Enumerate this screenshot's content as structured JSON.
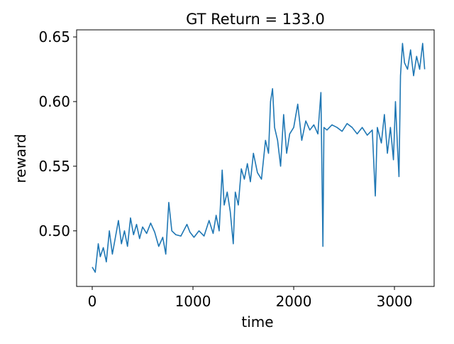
{
  "chart_data": {
    "type": "line",
    "title": "GT Return = 133.0",
    "x_label": "time",
    "y_label": "reward",
    "x": [
      0,
      30,
      60,
      80,
      110,
      140,
      170,
      200,
      230,
      260,
      290,
      320,
      350,
      380,
      410,
      440,
      470,
      500,
      540,
      580,
      620,
      660,
      700,
      730,
      760,
      790,
      830,
      880,
      940,
      970,
      1010,
      1060,
      1110,
      1160,
      1200,
      1230,
      1260,
      1290,
      1310,
      1340,
      1370,
      1400,
      1420,
      1450,
      1480,
      1510,
      1540,
      1570,
      1600,
      1640,
      1680,
      1720,
      1750,
      1770,
      1790,
      1810,
      1840,
      1870,
      1900,
      1930,
      1960,
      2000,
      2040,
      2080,
      2120,
      2160,
      2200,
      2240,
      2270,
      2290,
      2300,
      2330,
      2380,
      2430,
      2480,
      2530,
      2580,
      2630,
      2680,
      2730,
      2780,
      2810,
      2830,
      2870,
      2900,
      2930,
      2960,
      2990,
      3010,
      3030,
      3045,
      3060,
      3080,
      3100,
      3130,
      3160,
      3190,
      3220,
      3250,
      3280,
      3300
    ],
    "values": [
      0.472,
      0.468,
      0.49,
      0.48,
      0.487,
      0.476,
      0.5,
      0.482,
      0.495,
      0.508,
      0.49,
      0.5,
      0.488,
      0.51,
      0.497,
      0.505,
      0.494,
      0.503,
      0.498,
      0.506,
      0.499,
      0.488,
      0.495,
      0.482,
      0.522,
      0.5,
      0.497,
      0.496,
      0.505,
      0.499,
      0.495,
      0.5,
      0.496,
      0.508,
      0.498,
      0.512,
      0.5,
      0.547,
      0.52,
      0.53,
      0.515,
      0.49,
      0.53,
      0.52,
      0.548,
      0.54,
      0.552,
      0.538,
      0.56,
      0.545,
      0.54,
      0.57,
      0.56,
      0.6,
      0.61,
      0.58,
      0.57,
      0.55,
      0.59,
      0.56,
      0.575,
      0.58,
      0.598,
      0.57,
      0.585,
      0.578,
      0.582,
      0.575,
      0.607,
      0.488,
      0.58,
      0.578,
      0.582,
      0.58,
      0.577,
      0.583,
      0.58,
      0.575,
      0.58,
      0.574,
      0.578,
      0.527,
      0.58,
      0.568,
      0.59,
      0.56,
      0.58,
      0.555,
      0.6,
      0.565,
      0.542,
      0.62,
      0.645,
      0.63,
      0.625,
      0.64,
      0.62,
      0.635,
      0.625,
      0.645,
      0.625
    ],
    "color": "#1f77b4",
    "xlim": [
      -155,
      3394
    ],
    "ylim": [
      0.457,
      0.6555
    ],
    "xticks": [
      0,
      1000,
      2000,
      3000
    ],
    "yticks": [
      {
        "value": 0.5,
        "label": "0.50"
      },
      0.55,
      {
        "value": 0.6,
        "label": "0.60"
      },
      0.65
    ]
  }
}
